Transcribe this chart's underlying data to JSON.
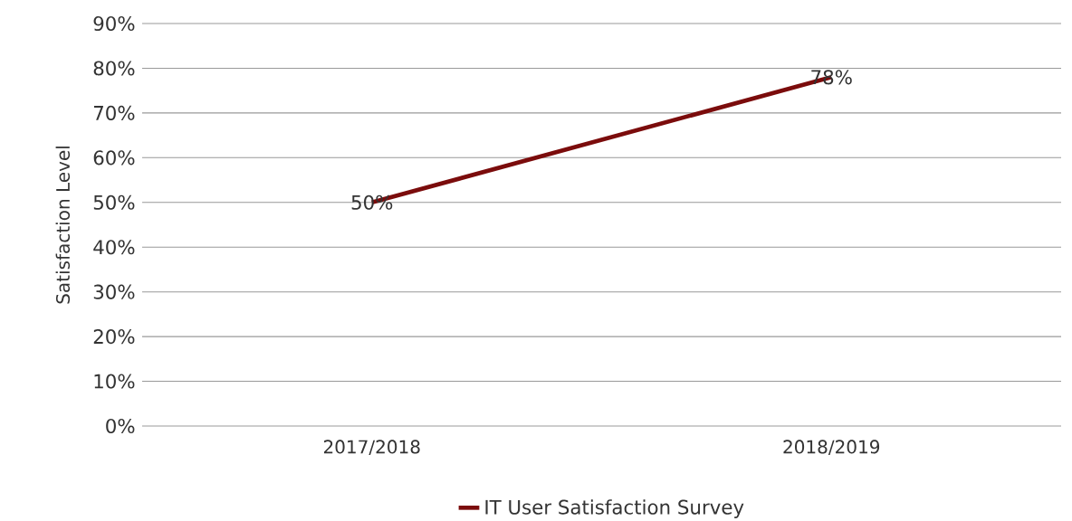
{
  "chart_data": {
    "type": "line",
    "ylabel": "Satisfaction Level",
    "categories": [
      "2017/2018",
      "2018/2019"
    ],
    "series": [
      {
        "name": "IT User Satisfaction Survey",
        "color": "#7b0c0c",
        "values": [
          50,
          78
        ],
        "value_labels": [
          "50%",
          "78%"
        ]
      }
    ],
    "ylim": [
      0,
      90
    ],
    "yticks": [
      {
        "value": 0,
        "label": "0%"
      },
      {
        "value": 10,
        "label": "10%"
      },
      {
        "value": 20,
        "label": "20%"
      },
      {
        "value": 30,
        "label": "30%"
      },
      {
        "value": 40,
        "label": "40%"
      },
      {
        "value": 50,
        "label": "50%"
      },
      {
        "value": 60,
        "label": "60%"
      },
      {
        "value": 70,
        "label": "70%"
      },
      {
        "value": 80,
        "label": "80%"
      },
      {
        "value": 90,
        "label": "90%"
      }
    ],
    "grid": "y",
    "legend": "bottom",
    "marker": "none",
    "line_style": "solid"
  }
}
